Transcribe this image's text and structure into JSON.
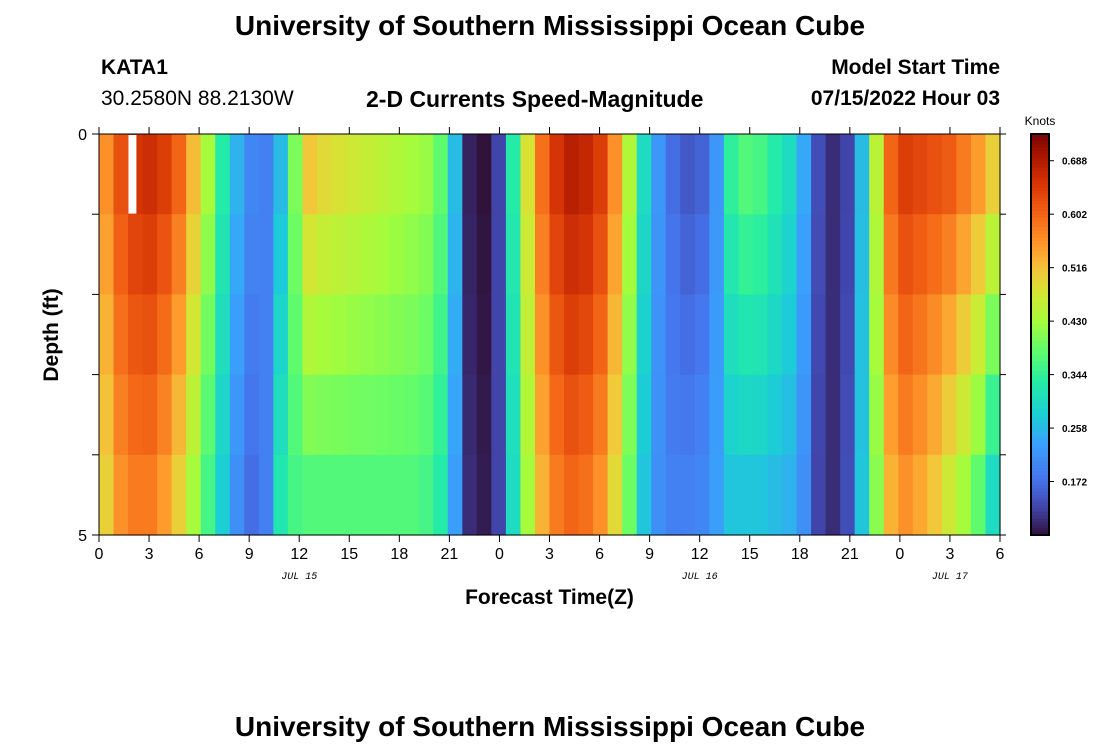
{
  "header": {
    "title": "University of Southern Mississippi Ocean Cube",
    "station_id": "KATA1",
    "station_coords": "30.2580N  88.2130W",
    "product_name": "2-D Currents Speed-Magnitude",
    "model_start_label": "Model Start Time",
    "model_start_value": "07/15/2022 Hour 03"
  },
  "footer": {
    "title": "University of Southern Mississippi Ocean Cube"
  },
  "chart_data": {
    "type": "heatmap",
    "title": "2-D Currents Speed-Magnitude",
    "xlabel": "Forecast Time(Z)",
    "ylabel": "Depth (ft)",
    "y_ticks": [
      "0",
      "5"
    ],
    "ylim": [
      0,
      5
    ],
    "x_tick_labels": [
      "0",
      "3",
      "6",
      "9",
      "12",
      "15",
      "18",
      "21",
      "0",
      "3",
      "6",
      "9",
      "12",
      "15",
      "18",
      "21",
      "0",
      "3",
      "6"
    ],
    "x_hours": [
      0,
      54
    ],
    "date_labels": [
      {
        "text": "JUL 15",
        "hour": 12
      },
      {
        "text": "JUL 16",
        "hour": 36
      },
      {
        "text": "JUL 17",
        "hour": 51
      }
    ],
    "colorbar": {
      "unit": "Knots",
      "range": [
        0.086,
        0.731
      ],
      "ticks": [
        "0.688",
        "0.602",
        "0.516",
        "0.430",
        "0.344",
        "0.258",
        "0.172"
      ],
      "tick_values": [
        0.688,
        0.602,
        0.516,
        0.43,
        0.344,
        0.258,
        0.172
      ]
    },
    "depth_layers": 5,
    "surface_speed_by_hour": [
      0.56,
      0.62,
      0.65,
      0.66,
      0.64,
      0.6,
      0.52,
      0.43,
      0.33,
      0.25,
      0.2,
      0.19,
      0.26,
      0.4,
      0.51,
      0.49,
      0.48,
      0.47,
      0.46,
      0.45,
      0.44,
      0.43,
      0.42,
      0.38,
      0.26,
      0.1,
      0.086,
      0.13,
      0.33,
      0.48,
      0.59,
      0.65,
      0.68,
      0.67,
      0.64,
      0.56,
      0.44,
      0.3,
      0.22,
      0.17,
      0.15,
      0.16,
      0.22,
      0.34,
      0.37,
      0.36,
      0.33,
      0.3,
      0.24,
      0.14,
      0.11,
      0.13,
      0.26,
      0.45,
      0.6,
      0.64,
      0.63,
      0.62,
      0.61,
      0.58,
      0.55,
      0.5
    ],
    "bottom_speed_by_hour": [
      0.5,
      0.56,
      0.58,
      0.58,
      0.55,
      0.5,
      0.43,
      0.36,
      0.28,
      0.21,
      0.17,
      0.19,
      0.32,
      0.36,
      0.37,
      0.37,
      0.37,
      0.37,
      0.37,
      0.37,
      0.37,
      0.37,
      0.36,
      0.33,
      0.23,
      0.11,
      0.095,
      0.13,
      0.3,
      0.43,
      0.53,
      0.58,
      0.6,
      0.59,
      0.56,
      0.49,
      0.39,
      0.27,
      0.21,
      0.19,
      0.19,
      0.2,
      0.23,
      0.27,
      0.27,
      0.27,
      0.26,
      0.25,
      0.21,
      0.13,
      0.11,
      0.14,
      0.27,
      0.41,
      0.53,
      0.56,
      0.54,
      0.51,
      0.47,
      0.43,
      0.38,
      0.3
    ],
    "missing_cells": [
      {
        "hour": 1,
        "layer": 0
      }
    ]
  }
}
